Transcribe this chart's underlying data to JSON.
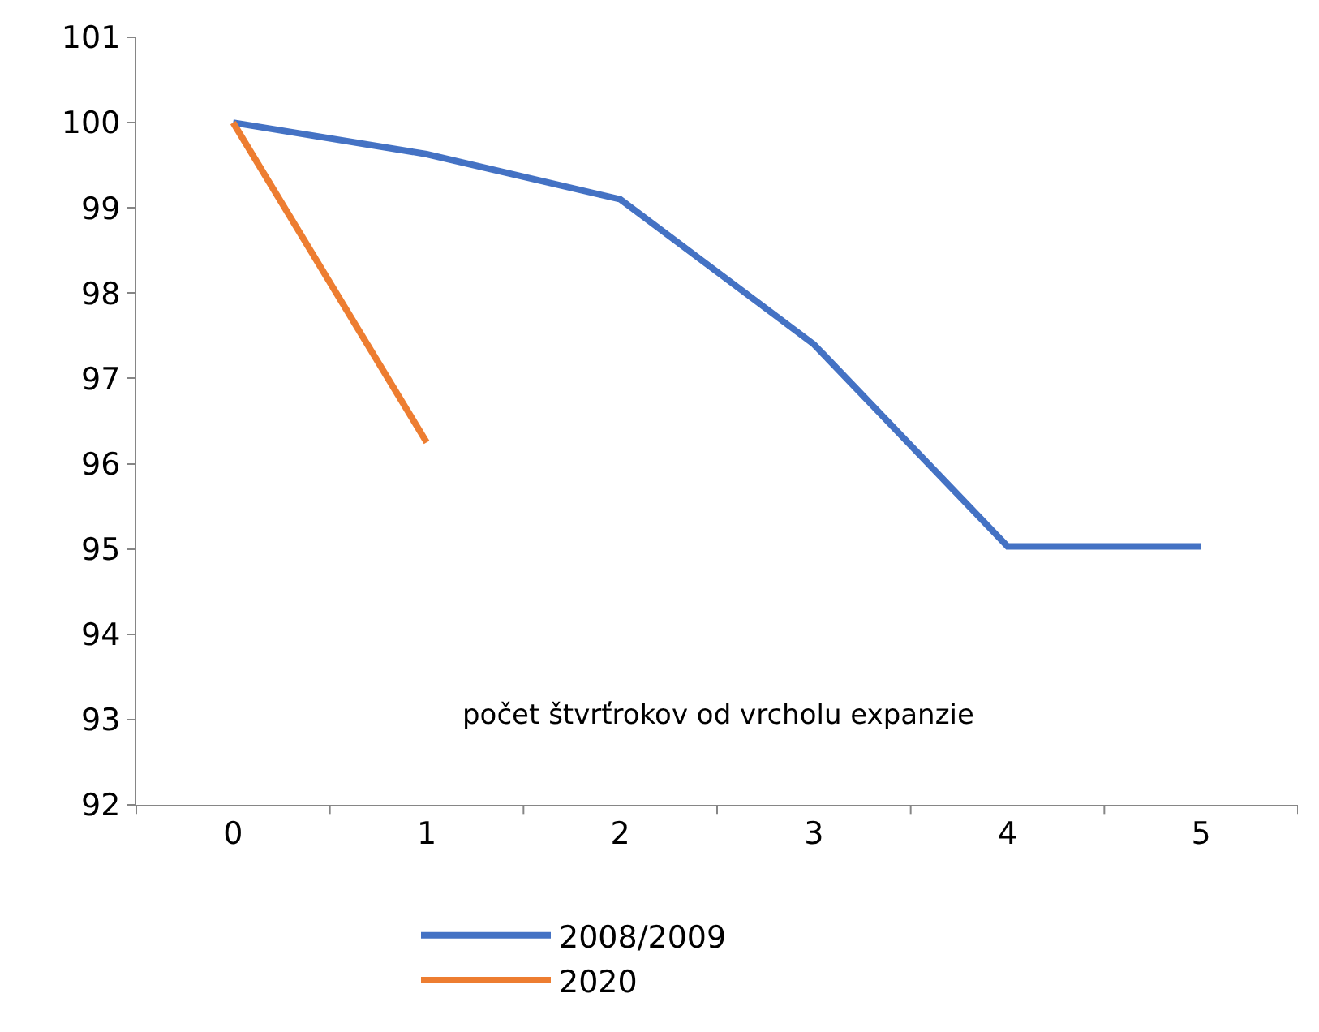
{
  "chart_data": {
    "type": "line",
    "xlabel": "počet štvrťrokov od vrcholu expanzie",
    "categories": [
      "0",
      "1",
      "2",
      "3",
      "4",
      "5"
    ],
    "series": [
      {
        "name": "2008/2009",
        "color": "#4472c4",
        "values": [
          100,
          99.63,
          99.1,
          97.4,
          95.03,
          95.03
        ]
      },
      {
        "name": "2020",
        "color": "#ed7d31",
        "values": [
          100,
          96.25,
          null,
          null,
          null,
          null
        ]
      }
    ],
    "ylim": [
      92,
      101
    ],
    "yticks": [
      92,
      93,
      94,
      95,
      96,
      97,
      98,
      99,
      100,
      101
    ],
    "legend": "bottom",
    "marker": "none",
    "line_style": "solid"
  }
}
